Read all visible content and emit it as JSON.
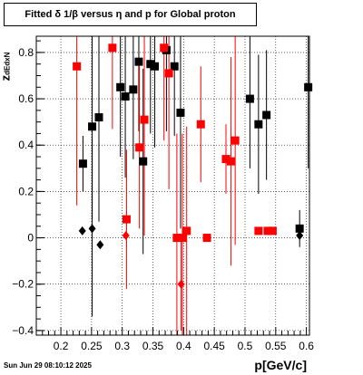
{
  "title": "Fitted δ 1/β versus η and p for Global proton",
  "timestamp": "Sun Jun 29 08:10:12 2025",
  "chart_data": {
    "type": "scatter",
    "title": "Fitted δ 1/β versus η and p for Global proton",
    "xlabel": "p[GeV/c]",
    "ylabel": "z_{dEdxN}",
    "xlim": [
      0.16,
      0.605
    ],
    "ylim": [
      -0.42,
      0.87
    ],
    "xticks": [
      "0.2",
      "0.25",
      "0.3",
      "0.35",
      "0.4",
      "0.45",
      "0.5",
      "0.55",
      "0.6"
    ],
    "yticks": [
      "−0.4",
      "−0.2",
      "0",
      "0.2",
      "0.4",
      "0.6",
      "0.8"
    ],
    "grid": true,
    "colors": {
      "black": "#000000",
      "red": "#ff0000"
    },
    "series": [
      {
        "color": "#000000",
        "marker": "square",
        "points": [
          {
            "x": 0.236,
            "y": 0.32,
            "err": 0.12
          },
          {
            "x": 0.251,
            "y": 0.48,
            "err": 0.4
          },
          {
            "x": 0.262,
            "y": 0.52,
            "err": 0.45
          },
          {
            "x": 0.297,
            "y": 0.65,
            "err": 0.3
          },
          {
            "x": 0.305,
            "y": 0.61,
            "err": 0.35
          },
          {
            "x": 0.318,
            "y": 0.64,
            "err": 0.3
          },
          {
            "x": 0.327,
            "y": 0.76,
            "err": 0.3
          },
          {
            "x": 0.334,
            "y": 0.33,
            "err": 0.4
          },
          {
            "x": 0.346,
            "y": 0.75,
            "err": 0.3
          },
          {
            "x": 0.353,
            "y": 0.74,
            "err": 0.35
          },
          {
            "x": 0.372,
            "y": 0.81,
            "err": 0.35
          },
          {
            "x": 0.385,
            "y": 0.74,
            "err": 0.3
          },
          {
            "x": 0.395,
            "y": 0.54,
            "err": 0.5
          },
          {
            "x": 0.508,
            "y": 0.6,
            "err": 0.3
          },
          {
            "x": 0.522,
            "y": 0.49,
            "err": 0.3
          },
          {
            "x": 0.535,
            "y": 0.53,
            "err": 0.28
          },
          {
            "x": 0.589,
            "y": 0.04,
            "err": 0.08
          },
          {
            "x": 0.603,
            "y": 0.65,
            "err": 0.35
          }
        ]
      },
      {
        "color": "#000000",
        "marker": "diamond",
        "points": [
          {
            "x": 0.235,
            "y": 0.03,
            "err": 0.0
          },
          {
            "x": 0.251,
            "y": 0.04,
            "err": 0.38
          },
          {
            "x": 0.264,
            "y": -0.03,
            "err": 0.0
          },
          {
            "x": 0.589,
            "y": 0.01,
            "err": 0.0
          }
        ]
      },
      {
        "color": "#ff0000",
        "marker": "square",
        "points": [
          {
            "x": 0.226,
            "y": 0.74,
            "err": 0.6
          },
          {
            "x": 0.284,
            "y": 0.82,
            "err": 0.35
          },
          {
            "x": 0.307,
            "y": 0.08,
            "err": 0.3
          },
          {
            "x": 0.328,
            "y": 0.39,
            "err": 0.35
          },
          {
            "x": 0.336,
            "y": 0.51,
            "err": 0.5
          },
          {
            "x": 0.368,
            "y": 0.82,
            "err": 0.4
          },
          {
            "x": 0.376,
            "y": 0.71,
            "err": 0.5
          },
          {
            "x": 0.389,
            "y": 0.0,
            "err": 0.45
          },
          {
            "x": 0.398,
            "y": 0.0,
            "err": 0.45
          },
          {
            "x": 0.405,
            "y": 0.03,
            "err": 0.45
          },
          {
            "x": 0.428,
            "y": 0.49,
            "err": 0.25
          },
          {
            "x": 0.438,
            "y": 0.0,
            "err": 0.0
          },
          {
            "x": 0.469,
            "y": 0.34,
            "err": 0.15
          },
          {
            "x": 0.477,
            "y": 0.33,
            "err": 0.45
          },
          {
            "x": 0.484,
            "y": 0.42,
            "err": 0.45
          },
          {
            "x": 0.522,
            "y": 0.03,
            "err": 0.0
          },
          {
            "x": 0.537,
            "y": 0.03,
            "err": 0.0
          },
          {
            "x": 0.545,
            "y": 0.03,
            "err": 0.0
          }
        ]
      },
      {
        "color": "#ff0000",
        "marker": "diamond",
        "points": [
          {
            "x": 0.306,
            "y": 0.01,
            "err": 0.0
          },
          {
            "x": 0.396,
            "y": -0.2,
            "err": 0.2
          }
        ]
      }
    ]
  }
}
